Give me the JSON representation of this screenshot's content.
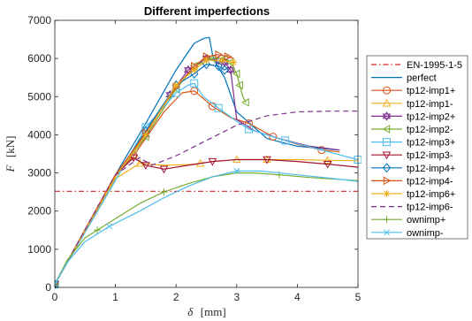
{
  "chart_data": {
    "type": "line",
    "title": "Different imperfections",
    "ylabel_symbol": "F",
    "ylabel_unit": "[kN]",
    "xlabel_symbol": "δ",
    "xlabel_unit": "[mm]",
    "xlim": [
      0,
      5
    ],
    "ylim": [
      0,
      7000
    ],
    "xticks": [
      "0",
      "1",
      "2",
      "3",
      "4",
      "5"
    ],
    "yticks": [
      "0",
      "1000",
      "2000",
      "3000",
      "4000",
      "5000",
      "6000",
      "7000"
    ],
    "grid": false,
    "legend_position": "outside-right",
    "series": [
      {
        "name": "EN-1995-1-5",
        "color": "#d62728",
        "dash": "dashdot",
        "marker": "none",
        "x": [
          0,
          5
        ],
        "y": [
          2520,
          2520
        ]
      },
      {
        "name": "perfect",
        "color": "#0072bd",
        "dash": "solid",
        "marker": "none",
        "x": [
          0,
          0.5,
          1.0,
          1.5,
          2.0,
          2.3,
          2.45,
          2.5,
          2.55,
          2.6,
          2.65,
          2.7,
          2.8,
          3.0,
          3.5,
          4.0,
          4.7
        ],
        "y": [
          80,
          1500,
          2950,
          4300,
          5700,
          6400,
          6520,
          6540,
          6550,
          6100,
          5900,
          5750,
          5500,
          4600,
          3900,
          3700,
          3600
        ]
      },
      {
        "name": "tp12-imp1+",
        "color": "#d95319",
        "dash": "solid",
        "marker": "circle",
        "x": [
          0,
          1.0,
          1.3,
          1.8,
          2.1,
          2.3,
          2.6,
          2.9,
          3.2,
          3.6,
          4.0,
          4.4,
          4.7
        ],
        "y": [
          80,
          2950,
          3450,
          4600,
          5100,
          5150,
          4750,
          4450,
          4300,
          3950,
          3750,
          3600,
          3550
        ],
        "marker_indices": [
          0,
          2,
          5,
          6,
          8,
          9,
          11
        ]
      },
      {
        "name": "tp12-imp1-",
        "color": "#edb120",
        "dash": "solid",
        "marker": "triangle-up",
        "x": [
          0,
          1.0,
          1.4,
          1.8,
          2.2,
          2.4,
          2.6,
          3.0,
          3.5,
          4.0,
          4.5,
          5.0
        ],
        "y": [
          80,
          2850,
          3250,
          3200,
          3220,
          3250,
          3300,
          3350,
          3350,
          3350,
          3330,
          3320
        ],
        "marker_indices": [
          0,
          2,
          5,
          7,
          8,
          10
        ]
      },
      {
        "name": "tp12-imp2+",
        "color": "#7e2f8e",
        "dash": "solid",
        "marker": "hexagram",
        "x": [
          0,
          1.0,
          1.5,
          1.9,
          2.2,
          2.5,
          2.7,
          2.8,
          2.9,
          3.0,
          3.3,
          3.7,
          4.2,
          4.7
        ],
        "y": [
          80,
          2950,
          4000,
          5050,
          5700,
          6000,
          5950,
          5900,
          5700,
          4400,
          4100,
          3900,
          3700,
          3600
        ],
        "marker_indices": [
          0,
          2,
          3,
          4,
          5,
          6,
          7,
          8
        ]
      },
      {
        "name": "tp12-imp2-",
        "color": "#77ac30",
        "dash": "solid",
        "marker": "triangle-left",
        "x": [
          0,
          1.0,
          1.5,
          2.0,
          2.3,
          2.6,
          2.8,
          2.9,
          3.0,
          3.05,
          3.1,
          3.15
        ],
        "y": [
          80,
          2900,
          3950,
          5200,
          5800,
          6000,
          6000,
          5900,
          5600,
          5300,
          5000,
          4850
        ],
        "marker_indices": [
          0,
          2,
          3,
          4,
          5,
          6,
          7,
          8,
          9,
          11
        ]
      },
      {
        "name": "tp12-imp3+",
        "color": "#4dbeee",
        "dash": "solid",
        "marker": "square",
        "x": [
          0,
          1.0,
          1.5,
          2.0,
          2.2,
          2.3,
          2.45,
          2.7,
          3.0,
          3.2,
          3.8,
          4.4,
          5.0
        ],
        "y": [
          80,
          2800,
          4200,
          5100,
          5300,
          5350,
          5000,
          4700,
          4350,
          4150,
          3850,
          3600,
          3350
        ],
        "marker_indices": [
          0,
          2,
          3,
          5,
          7,
          9,
          10,
          12
        ]
      },
      {
        "name": "tp12-imp3-",
        "color": "#a2142f",
        "dash": "solid",
        "marker": "triangle-down",
        "x": [
          0,
          1.0,
          1.3,
          1.5,
          1.8,
          2.2,
          2.6,
          3.0,
          3.5,
          4.0,
          4.5,
          5.0
        ],
        "y": [
          80,
          2950,
          3400,
          3200,
          3100,
          3200,
          3300,
          3350,
          3350,
          3300,
          3230,
          3150
        ],
        "marker_indices": [
          0,
          2,
          3,
          4,
          6,
          8,
          10
        ]
      },
      {
        "name": "tp12-imp4+",
        "color": "#0072bd",
        "dash": "solid",
        "marker": "diamond",
        "x": [
          0,
          1.0,
          1.5,
          2.0,
          2.3,
          2.5,
          2.7,
          2.8,
          2.85
        ],
        "y": [
          80,
          2900,
          4100,
          5300,
          5600,
          5850,
          5800,
          5700,
          5750
        ],
        "marker_indices": [
          0,
          2,
          3,
          4,
          5,
          6,
          7
        ]
      },
      {
        "name": "tp12-imp4-",
        "color": "#d95319",
        "dash": "solid",
        "marker": "triangle-right",
        "x": [
          0,
          1.0,
          1.5,
          2.0,
          2.3,
          2.5,
          2.7,
          2.85,
          2.95
        ],
        "y": [
          80,
          2950,
          4050,
          5250,
          5800,
          6050,
          6100,
          6050,
          6000
        ],
        "marker_indices": [
          0,
          2,
          3,
          4,
          5,
          6,
          7
        ]
      },
      {
        "name": "tp12-imp6+",
        "color": "#edb120",
        "dash": "solid",
        "marker": "asterisk",
        "x": [
          0,
          1.0,
          1.5,
          2.0,
          2.3,
          2.5,
          2.75,
          2.95
        ],
        "y": [
          80,
          2900,
          4000,
          5300,
          5700,
          5950,
          5950,
          5900
        ],
        "marker_indices": [
          0,
          2,
          3,
          4,
          5,
          6,
          7
        ]
      },
      {
        "name": "tp12-imp6-",
        "color": "#7e2f8e",
        "dash": "dashed",
        "marker": "none",
        "x": [
          0,
          1.0,
          1.4,
          1.6,
          2.0,
          2.5,
          3.0,
          3.5,
          4.0,
          4.5,
          5.0
        ],
        "y": [
          80,
          2950,
          3400,
          3200,
          3450,
          3850,
          4250,
          4500,
          4600,
          4620,
          4620
        ]
      },
      {
        "name": "ownimp+",
        "color": "#77ac30",
        "dash": "solid",
        "marker": "plus",
        "x": [
          0,
          0.2,
          0.5,
          0.7,
          1.0,
          1.4,
          1.8,
          2.2,
          2.6,
          3.0,
          3.3,
          3.7,
          4.2,
          5.0
        ],
        "y": [
          80,
          700,
          1300,
          1500,
          1800,
          2200,
          2500,
          2720,
          2900,
          3000,
          3000,
          2950,
          2880,
          2800
        ],
        "marker_indices": [
          0,
          3,
          6,
          11
        ]
      },
      {
        "name": "ownimp-",
        "color": "#4dbeee",
        "dash": "solid",
        "marker": "x",
        "x": [
          0,
          0.2,
          0.5,
          0.9,
          1.4,
          1.8,
          2.2,
          2.6,
          3.0,
          3.4,
          4.0,
          4.5,
          5.0
        ],
        "y": [
          80,
          650,
          1200,
          1600,
          2000,
          2350,
          2650,
          2900,
          3050,
          3050,
          2950,
          2870,
          2780
        ],
        "marker_indices": [
          0,
          3,
          8
        ]
      }
    ]
  }
}
